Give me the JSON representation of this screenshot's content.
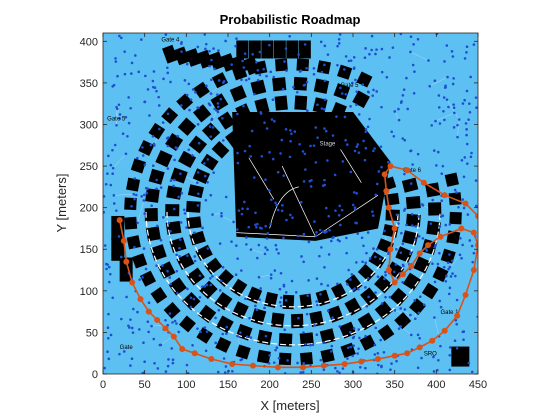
{
  "chart_data": {
    "type": "scatter",
    "title": "Probabilistic Roadmap",
    "xlabel": "X [meters]",
    "ylabel": "Y [meters]",
    "xlim": [
      0,
      450
    ],
    "ylim": [
      0,
      410
    ],
    "xticks": [
      0,
      50,
      100,
      150,
      200,
      250,
      300,
      350,
      400,
      450
    ],
    "yticks": [
      0,
      50,
      100,
      150,
      200,
      250,
      300,
      350,
      400
    ],
    "grid": false,
    "colors": {
      "background_field": "#5cc0f2",
      "structure": "#000000",
      "nodes": "#1f4fd1",
      "edges": "#a8dcf6",
      "path": "#d95319"
    },
    "map_labels": [
      {
        "text": "Gate 4",
        "x": 70,
        "y": 400
      },
      {
        "text": "Gate 5",
        "x": 285,
        "y": 345
      },
      {
        "text": "Gate 5",
        "x": 5,
        "y": 305
      },
      {
        "text": "Gate 6",
        "x": 360,
        "y": 243
      },
      {
        "text": "Gate 1",
        "x": 405,
        "y": 72
      },
      {
        "text": "Gate",
        "x": 20,
        "y": 30
      },
      {
        "text": "SRO",
        "x": 385,
        "y": 22
      },
      {
        "text": "Stage",
        "x": 260,
        "y": 275
      }
    ],
    "path": {
      "name": "",
      "x": [
        20,
        25,
        28,
        35,
        45,
        55,
        65,
        75,
        85,
        95,
        110,
        130,
        155,
        180,
        210,
        240,
        265,
        290,
        310,
        330,
        350,
        365,
        380,
        395,
        410,
        425,
        435,
        445,
        450,
        445,
        430,
        405,
        390,
        380,
        370,
        360,
        350,
        343,
        345,
        350,
        343,
        340,
        338,
        345,
        365,
        385,
        410,
        435,
        450
      ],
      "y": [
        185,
        160,
        135,
        110,
        90,
        75,
        65,
        55,
        45,
        30,
        25,
        18,
        12,
        10,
        8,
        8,
        10,
        12,
        15,
        18,
        22,
        25,
        32,
        40,
        52,
        70,
        95,
        125,
        155,
        170,
        175,
        165,
        155,
        145,
        130,
        120,
        110,
        125,
        150,
        175,
        200,
        220,
        240,
        250,
        245,
        230,
        215,
        205,
        190
      ]
    }
  }
}
